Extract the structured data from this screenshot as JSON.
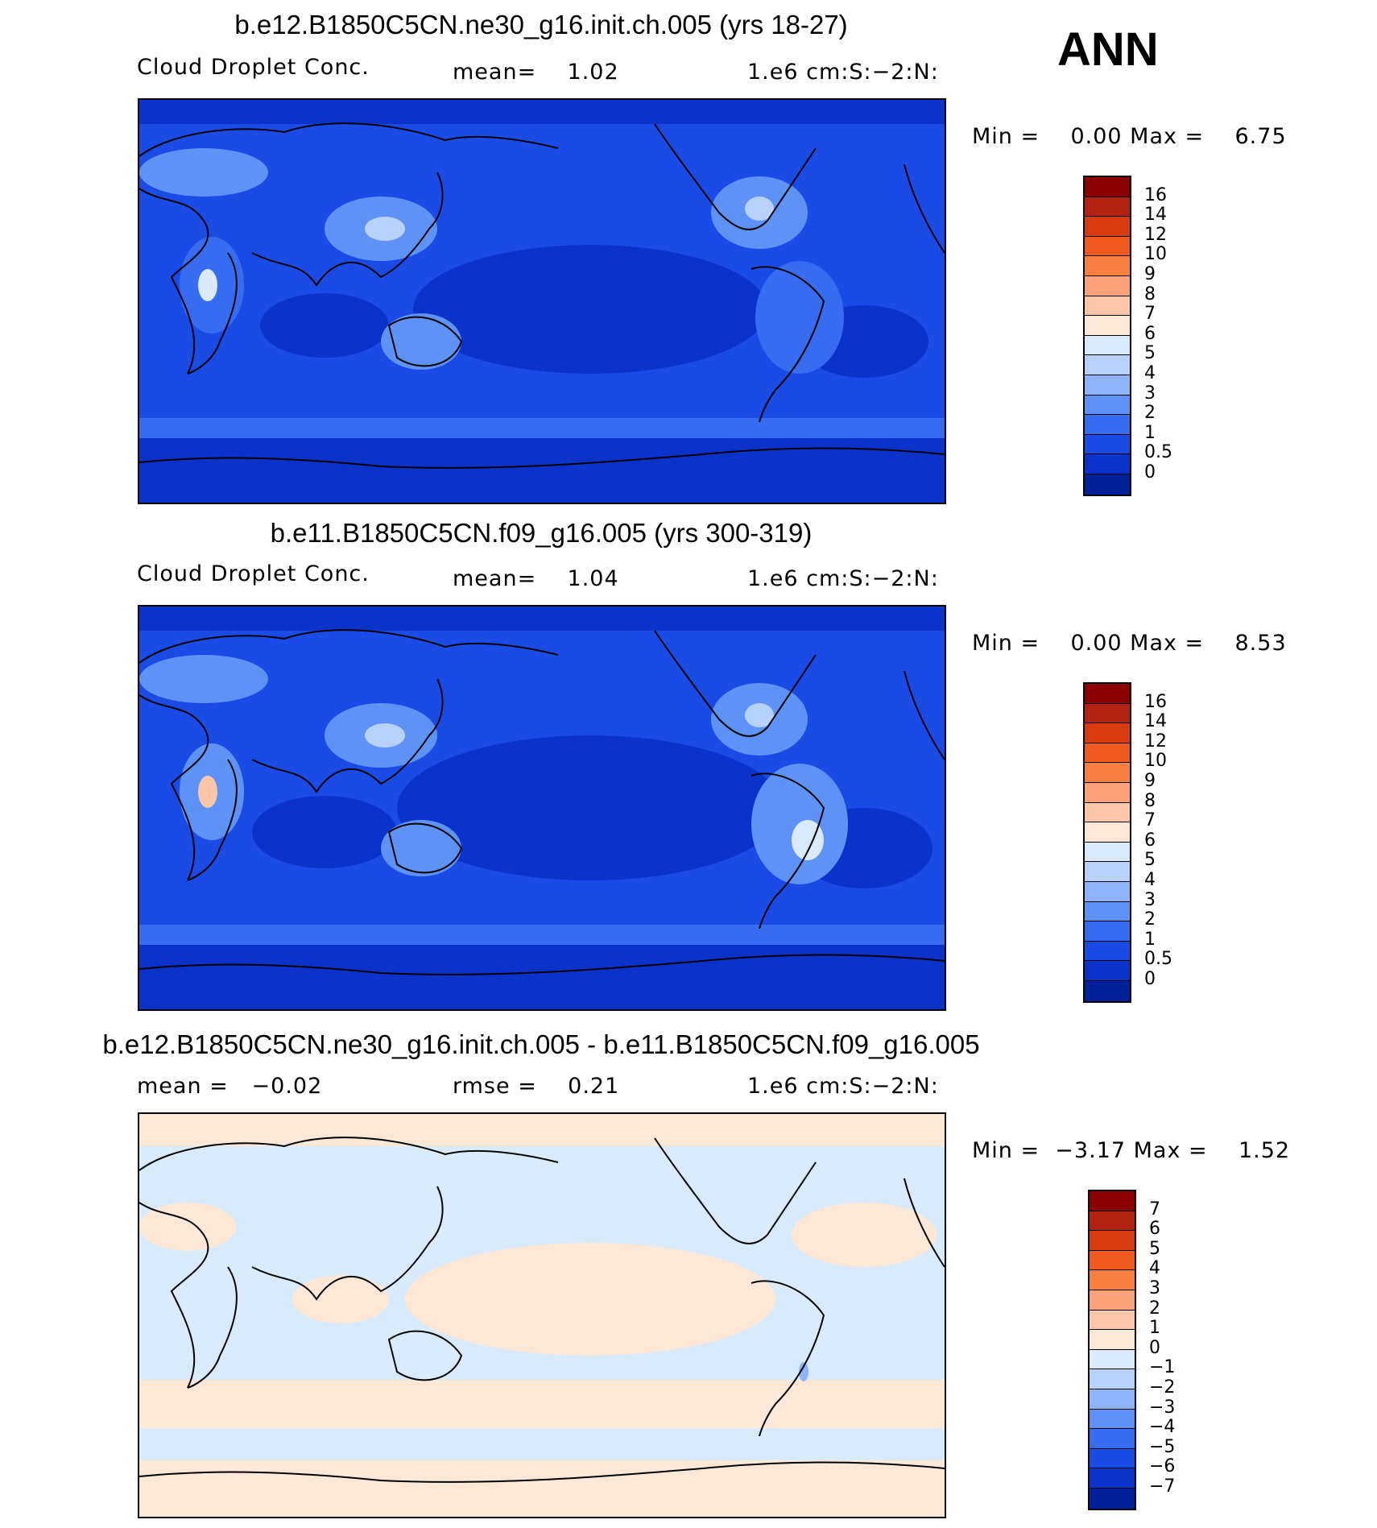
{
  "season": "ANN",
  "panels": [
    {
      "title": "b.e12.B1850C5CN.ne30_g16.init.ch.005 (yrs 18-27)",
      "left_label": "Cloud Droplet Conc.",
      "center_label": "mean=    1.02",
      "right_label": "1.e6 cm:S:−2:N:",
      "minmax": "Min =    0.00 Max =    6.75",
      "levels": [
        "16",
        "14",
        "12",
        "10",
        "9",
        "8",
        "7",
        "6",
        "5",
        "4",
        "3",
        "2",
        "1",
        "0.5",
        "0"
      ],
      "colors": [
        "#8b0000",
        "#b22210",
        "#d83b10",
        "#ef5a1e",
        "#f98040",
        "#fba27a",
        "#fcc6a8",
        "#fde8d8",
        "#d9ebfb",
        "#b6d2fb",
        "#8db4fa",
        "#5f92f6",
        "#376cf0",
        "#1a4be4",
        "#0c33c9",
        "#00209a"
      ]
    },
    {
      "title": "b.e11.B1850C5CN.f09_g16.005 (yrs 300-319)",
      "left_label": "Cloud Droplet Conc.",
      "center_label": "mean=    1.04",
      "right_label": "1.e6 cm:S:−2:N:",
      "minmax": "Min =    0.00 Max =    8.53",
      "levels": [
        "16",
        "14",
        "12",
        "10",
        "9",
        "8",
        "7",
        "6",
        "5",
        "4",
        "3",
        "2",
        "1",
        "0.5",
        "0"
      ],
      "colors": [
        "#8b0000",
        "#b22210",
        "#d83b10",
        "#ef5a1e",
        "#f98040",
        "#fba27a",
        "#fcc6a8",
        "#fde8d8",
        "#d9ebfb",
        "#b6d2fb",
        "#8db4fa",
        "#5f92f6",
        "#376cf0",
        "#1a4be4",
        "#0c33c9",
        "#00209a"
      ]
    },
    {
      "title": "b.e12.B1850C5CN.ne30_g16.init.ch.005 - b.e11.B1850C5CN.f09_g16.005",
      "left_label": "mean =   −0.02",
      "center_label": "rmse =    0.21",
      "right_label": "1.e6 cm:S:−2:N:",
      "minmax": "Min =  −3.17 Max =    1.52",
      "levels": [
        "7",
        "6",
        "5",
        "4",
        "3",
        "2",
        "1",
        "0",
        "−1",
        "−2",
        "−3",
        "−4",
        "−5",
        "−6",
        "−7"
      ],
      "colors": [
        "#8b0000",
        "#b22210",
        "#d83b10",
        "#ef5a1e",
        "#f98040",
        "#fba27a",
        "#fcc6a8",
        "#fde8d8",
        "#d9ebfb",
        "#b6d2fb",
        "#8db4fa",
        "#5f92f6",
        "#376cf0",
        "#1a4be4",
        "#0c33c9",
        "#00209a"
      ]
    }
  ]
}
